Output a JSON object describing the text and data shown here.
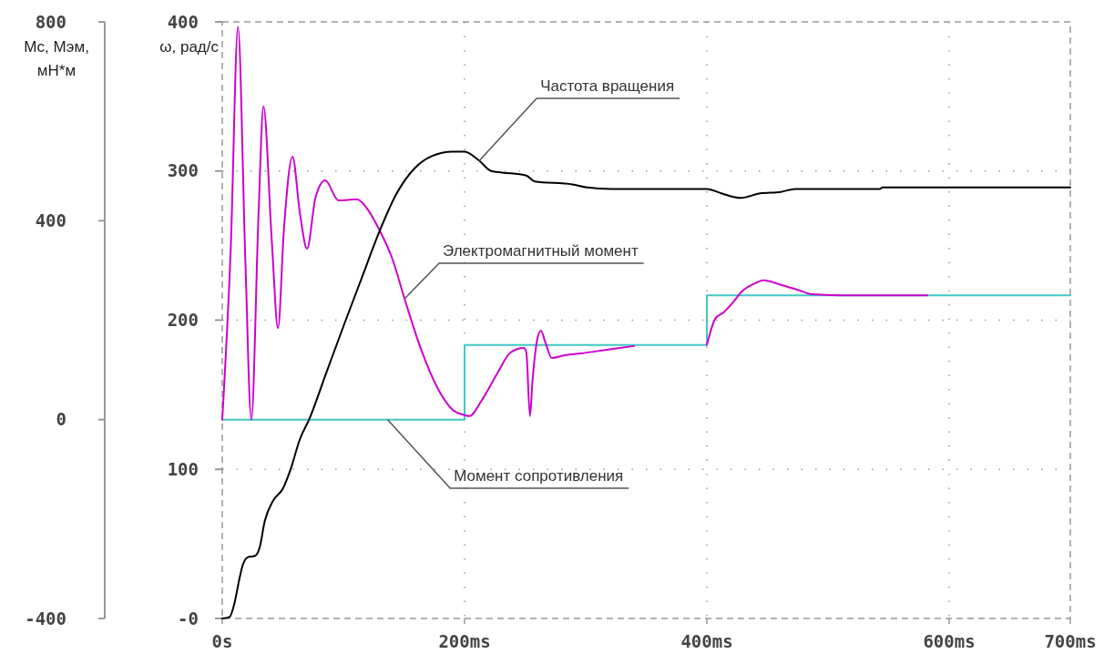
{
  "chart_data": {
    "type": "line",
    "ylabel": "Мс, Мэм, мН*м",
    "y2label": "ω, рад/с",
    "xlim": [
      0,
      700
    ],
    "xticks": [
      {
        "value": 0,
        "label": "0s"
      },
      {
        "value": 200,
        "label": "200ms"
      },
      {
        "value": 400,
        "label": "400ms"
      },
      {
        "value": 600,
        "label": "600ms"
      },
      {
        "value": 700,
        "label": "700ms"
      }
    ],
    "ylim": [
      -400,
      800
    ],
    "yticks": [
      -400,
      0,
      400,
      800
    ],
    "y2lim": [
      0,
      400
    ],
    "y2ticks": [
      {
        "value": 0,
        "label": "-0"
      },
      100,
      200,
      300,
      400
    ],
    "grid": true,
    "series": [
      {
        "name": "Момент сопротивления",
        "type": "step",
        "color": "#40c8c8",
        "x": [
          0,
          200,
          400,
          700
        ],
        "values": [
          0,
          150,
          250,
          250
        ]
      },
      {
        "name": "Электромагнитный момент",
        "color": "#cc00cc",
        "x": [
          0,
          7,
          13,
          19,
          24,
          30,
          34,
          41,
          46,
          51,
          58,
          64,
          70,
          77,
          85,
          96,
          111,
          120,
          130,
          140,
          151,
          164,
          178,
          190,
          200,
          204,
          214,
          227,
          238,
          249,
          251,
          254,
          256,
          260,
          263,
          267,
          272,
          282,
          296,
          321,
          340,
          370,
          400,
          407,
          414,
          421,
          429,
          438,
          447,
          460,
          475,
          487,
          509,
          582
        ],
        "values": [
          0,
          344,
          790,
          326,
          0,
          417,
          630,
          355,
          184,
          386,
          529,
          417,
          344,
          447,
          481,
          441,
          443,
          423,
          380,
          326,
          239,
          142,
          62,
          20,
          9,
          7,
          38,
          93,
          135,
          144,
          135,
          7,
          75,
          161,
          179,
          153,
          124,
          129,
          133,
          142,
          148,
          null,
          150,
          203,
          216,
          234,
          258,
          272,
          280,
          272,
          261,
          252,
          250,
          250
        ]
      },
      {
        "name": "Частота вращения",
        "color": "#000000",
        "axis": "y2",
        "x": [
          0,
          6,
          10,
          14,
          17,
          21,
          27,
          31,
          35,
          42,
          50,
          56,
          64,
          72,
          86,
          101,
          115,
          130,
          144,
          159,
          173,
          190,
          200,
          212,
          222,
          231,
          251,
          258,
          289,
          301,
          321,
          400,
          412,
          428,
          444,
          461,
          473,
          543,
          545,
          700
        ],
        "values": [
          0,
          1,
          10,
          26,
          36,
          41,
          42,
          48,
          65,
          79,
          87,
          99,
          120,
          134,
          165,
          198,
          228,
          260,
          285,
          302,
          310,
          313,
          313,
          307,
          300,
          299,
          297,
          293,
          291,
          289,
          288,
          288,
          285,
          282,
          285,
          286,
          288,
          288,
          289,
          289
        ]
      }
    ]
  }
}
